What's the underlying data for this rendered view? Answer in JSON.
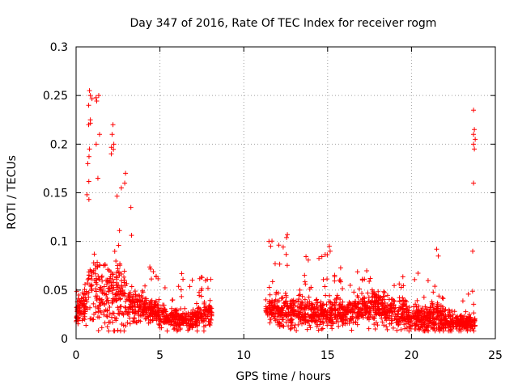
{
  "chart_data": {
    "type": "scatter",
    "title": "Day 347 of 2016, Rate Of TEC Index for receiver rogm",
    "xlabel": "GPS time / hours",
    "ylabel": "ROTI / TECUs",
    "xlim": [
      0,
      25
    ],
    "ylim": [
      0,
      0.3
    ],
    "xticks": [
      0,
      5,
      10,
      15,
      20,
      25
    ],
    "yticks": [
      0,
      0.05,
      0.1,
      0.15,
      0.2,
      0.25,
      0.3
    ],
    "grid": true,
    "marker": "plus",
    "color": "#ff0000",
    "series": [
      {
        "name": "ROTI",
        "envelope": [
          {
            "x": 0.0,
            "base": 0.02,
            "spread": 0.025,
            "peak": 0.05
          },
          {
            "x": 0.5,
            "base": 0.03,
            "spread": 0.04,
            "peak": 0.08
          },
          {
            "x": 0.8,
            "base": 0.04,
            "spread": 0.07,
            "peak": 0.25
          },
          {
            "x": 1.3,
            "base": 0.03,
            "spread": 0.07,
            "peak": 0.25
          },
          {
            "x": 2.0,
            "base": 0.03,
            "spread": 0.08,
            "peak": 0.22
          },
          {
            "x": 2.8,
            "base": 0.03,
            "spread": 0.06,
            "peak": 0.17
          },
          {
            "x": 3.5,
            "base": 0.025,
            "spread": 0.04,
            "peak": 0.13
          },
          {
            "x": 4.0,
            "base": 0.025,
            "spread": 0.03,
            "peak": 0.08
          },
          {
            "x": 5.0,
            "base": 0.02,
            "spread": 0.025,
            "peak": 0.065
          },
          {
            "x": 6.0,
            "base": 0.015,
            "spread": 0.025,
            "peak": 0.07
          },
          {
            "x": 7.0,
            "base": 0.015,
            "spread": 0.025,
            "peak": 0.07
          },
          {
            "x": 8.0,
            "base": 0.02,
            "spread": 0.03,
            "peak": 0.075
          },
          {
            "x": 11.5,
            "base": 0.025,
            "spread": 0.03,
            "peak": 0.1
          },
          {
            "x": 12.5,
            "base": 0.02,
            "spread": 0.035,
            "peak": 0.105
          },
          {
            "x": 14.0,
            "base": 0.02,
            "spread": 0.03,
            "peak": 0.08
          },
          {
            "x": 15.0,
            "base": 0.02,
            "spread": 0.03,
            "peak": 0.095
          },
          {
            "x": 16.0,
            "base": 0.02,
            "spread": 0.03,
            "peak": 0.07
          },
          {
            "x": 18.0,
            "base": 0.025,
            "spread": 0.035,
            "peak": 0.075
          },
          {
            "x": 20.0,
            "base": 0.015,
            "spread": 0.03,
            "peak": 0.07
          },
          {
            "x": 21.5,
            "base": 0.015,
            "spread": 0.03,
            "peak": 0.09
          },
          {
            "x": 22.5,
            "base": 0.012,
            "spread": 0.02,
            "peak": 0.05
          },
          {
            "x": 23.8,
            "base": 0.012,
            "spread": 0.02,
            "peak": 0.05
          }
        ],
        "gaps": [
          [
            8.1,
            11.3
          ]
        ],
        "outliers": [
          {
            "x": 0.8,
            "y": 0.255
          },
          {
            "x": 0.85,
            "y": 0.25
          },
          {
            "x": 0.75,
            "y": 0.24
          },
          {
            "x": 1.35,
            "y": 0.25
          },
          {
            "x": 0.75,
            "y": 0.22
          },
          {
            "x": 0.85,
            "y": 0.225
          },
          {
            "x": 2.2,
            "y": 0.22
          },
          {
            "x": 2.15,
            "y": 0.21
          },
          {
            "x": 2.25,
            "y": 0.2
          },
          {
            "x": 2.1,
            "y": 0.19
          },
          {
            "x": 0.8,
            "y": 0.195
          },
          {
            "x": 1.2,
            "y": 0.2
          },
          {
            "x": 0.7,
            "y": 0.18
          },
          {
            "x": 1.3,
            "y": 0.165
          },
          {
            "x": 2.95,
            "y": 0.17
          },
          {
            "x": 1.4,
            "y": 0.21
          },
          {
            "x": 2.9,
            "y": 0.16
          },
          {
            "x": 2.7,
            "y": 0.155
          },
          {
            "x": 23.7,
            "y": 0.235
          },
          {
            "x": 23.75,
            "y": 0.215
          },
          {
            "x": 23.7,
            "y": 0.21
          },
          {
            "x": 23.8,
            "y": 0.205
          },
          {
            "x": 23.7,
            "y": 0.2
          },
          {
            "x": 23.75,
            "y": 0.195
          },
          {
            "x": 23.7,
            "y": 0.16
          },
          {
            "x": 23.65,
            "y": 0.09
          },
          {
            "x": 12.6,
            "y": 0.107
          },
          {
            "x": 12.55,
            "y": 0.104
          },
          {
            "x": 11.5,
            "y": 0.1
          },
          {
            "x": 11.6,
            "y": 0.095
          },
          {
            "x": 15.1,
            "y": 0.095
          },
          {
            "x": 15.15,
            "y": 0.09
          },
          {
            "x": 21.5,
            "y": 0.092
          },
          {
            "x": 21.6,
            "y": 0.085
          }
        ]
      }
    ]
  }
}
